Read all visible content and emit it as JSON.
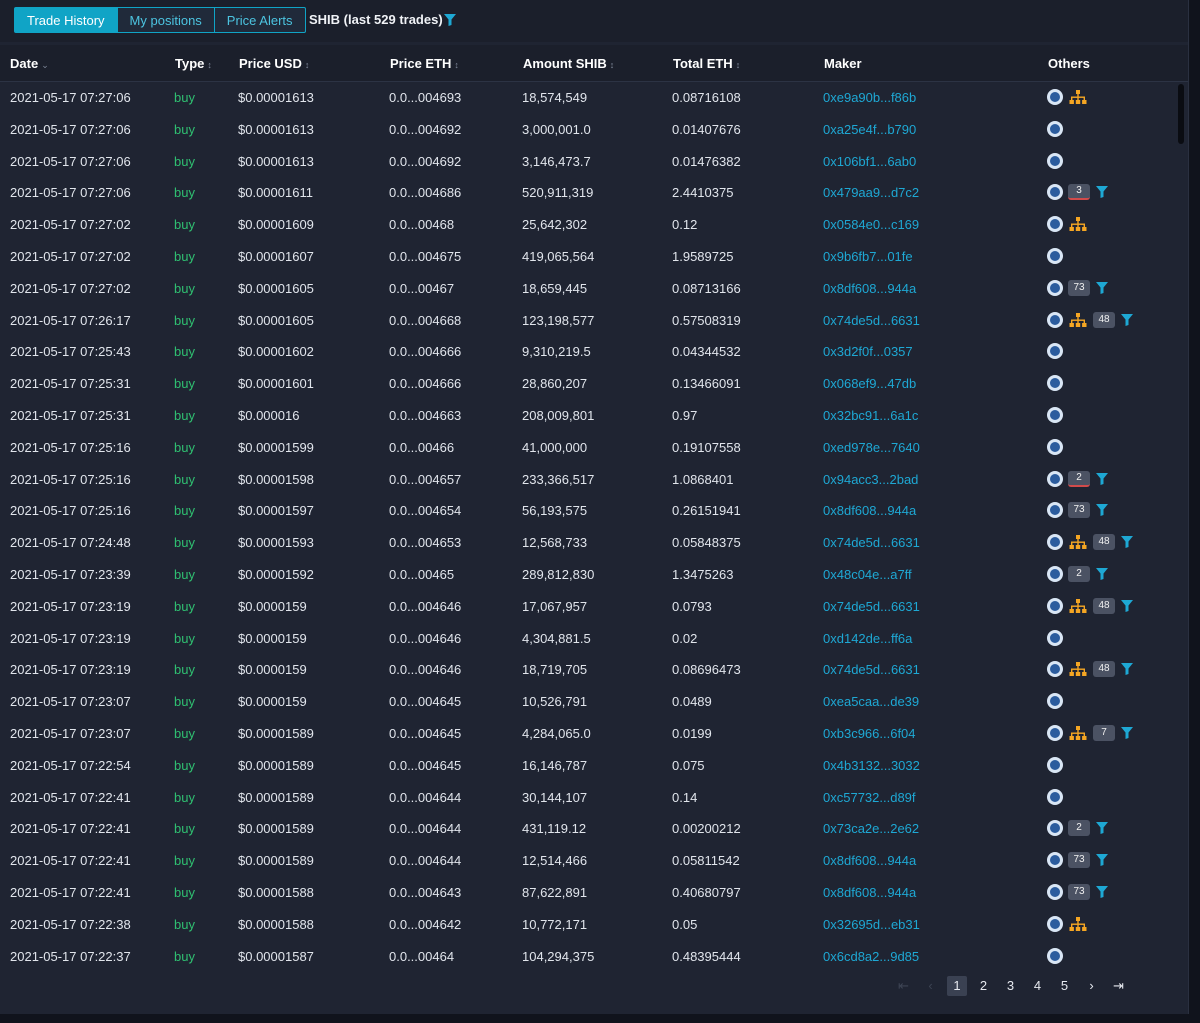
{
  "tabs": [
    {
      "label": "Trade History",
      "active": true
    },
    {
      "label": "My positions",
      "active": false
    },
    {
      "label": "Price Alerts",
      "active": false
    }
  ],
  "pair_label": "SHIB (last 529 trades)",
  "columns": [
    "Date",
    "Type",
    "Price USD",
    "Price ETH",
    "Amount SHIB",
    "Total ETH",
    "Maker",
    "Others"
  ],
  "sort_glyphs": {
    "date": "⌄",
    "type": "↕",
    "usd": "↕",
    "eth": "↕",
    "amt": "↕",
    "tot": "↕"
  },
  "colors": {
    "buy": "#2fbf71",
    "link": "#1ea8d4",
    "accent": "#10a4c6",
    "tree": "#f5a623"
  },
  "rows": [
    {
      "date": "2021-05-17 07:27:06",
      "type": "buy",
      "usd": "$0.00001613",
      "eth": "0.0...004693",
      "amt": "18,574,549",
      "tot": "0.08716108",
      "maker": "0xe9a90b...f86b",
      "tree": true,
      "badge": "",
      "filter": false
    },
    {
      "date": "2021-05-17 07:27:06",
      "type": "buy",
      "usd": "$0.00001613",
      "eth": "0.0...004692",
      "amt": "3,000,001.0",
      "tot": "0.01407676",
      "maker": "0xa25e4f...b790",
      "tree": false,
      "badge": "",
      "filter": false
    },
    {
      "date": "2021-05-17 07:27:06",
      "type": "buy",
      "usd": "$0.00001613",
      "eth": "0.0...004692",
      "amt": "3,146,473.7",
      "tot": "0.01476382",
      "maker": "0x106bf1...6ab0",
      "tree": false,
      "badge": "",
      "filter": false
    },
    {
      "date": "2021-05-17 07:27:06",
      "type": "buy",
      "usd": "$0.00001611",
      "eth": "0.0...004686",
      "amt": "520,911,319",
      "tot": "2.4410375",
      "maker": "0x479aa9...d7c2",
      "tree": false,
      "badge": "3",
      "badge_red": true,
      "filter": true
    },
    {
      "date": "2021-05-17 07:27:02",
      "type": "buy",
      "usd": "$0.00001609",
      "eth": "0.0...00468",
      "amt": "25,642,302",
      "tot": "0.12",
      "maker": "0x0584e0...c169",
      "tree": true,
      "badge": "",
      "filter": false
    },
    {
      "date": "2021-05-17 07:27:02",
      "type": "buy",
      "usd": "$0.00001607",
      "eth": "0.0...004675",
      "amt": "419,065,564",
      "tot": "1.9589725",
      "maker": "0x9b6fb7...01fe",
      "tree": false,
      "badge": "",
      "filter": false
    },
    {
      "date": "2021-05-17 07:27:02",
      "type": "buy",
      "usd": "$0.00001605",
      "eth": "0.0...00467",
      "amt": "18,659,445",
      "tot": "0.08713166",
      "maker": "0x8df608...944a",
      "tree": false,
      "badge": "73",
      "filter": true
    },
    {
      "date": "2021-05-17 07:26:17",
      "type": "buy",
      "usd": "$0.00001605",
      "eth": "0.0...004668",
      "amt": "123,198,577",
      "tot": "0.57508319",
      "maker": "0x74de5d...6631",
      "tree": true,
      "badge": "48",
      "filter": true
    },
    {
      "date": "2021-05-17 07:25:43",
      "type": "buy",
      "usd": "$0.00001602",
      "eth": "0.0...004666",
      "amt": "9,310,219.5",
      "tot": "0.04344532",
      "maker": "0x3d2f0f...0357",
      "tree": false,
      "badge": "",
      "filter": false
    },
    {
      "date": "2021-05-17 07:25:31",
      "type": "buy",
      "usd": "$0.00001601",
      "eth": "0.0...004666",
      "amt": "28,860,207",
      "tot": "0.13466091",
      "maker": "0x068ef9...47db",
      "tree": false,
      "badge": "",
      "filter": false
    },
    {
      "date": "2021-05-17 07:25:31",
      "type": "buy",
      "usd": "$0.000016",
      "eth": "0.0...004663",
      "amt": "208,009,801",
      "tot": "0.97",
      "maker": "0x32bc91...6a1c",
      "tree": false,
      "badge": "",
      "filter": false
    },
    {
      "date": "2021-05-17 07:25:16",
      "type": "buy",
      "usd": "$0.00001599",
      "eth": "0.0...00466",
      "amt": "41,000,000",
      "tot": "0.19107558",
      "maker": "0xed978e...7640",
      "tree": false,
      "badge": "",
      "filter": false
    },
    {
      "date": "2021-05-17 07:25:16",
      "type": "buy",
      "usd": "$0.00001598",
      "eth": "0.0...004657",
      "amt": "233,366,517",
      "tot": "1.0868401",
      "maker": "0x94acc3...2bad",
      "tree": false,
      "badge": "2",
      "badge_red": true,
      "filter": true
    },
    {
      "date": "2021-05-17 07:25:16",
      "type": "buy",
      "usd": "$0.00001597",
      "eth": "0.0...004654",
      "amt": "56,193,575",
      "tot": "0.26151941",
      "maker": "0x8df608...944a",
      "tree": false,
      "badge": "73",
      "filter": true
    },
    {
      "date": "2021-05-17 07:24:48",
      "type": "buy",
      "usd": "$0.00001593",
      "eth": "0.0...004653",
      "amt": "12,568,733",
      "tot": "0.05848375",
      "maker": "0x74de5d...6631",
      "tree": true,
      "badge": "48",
      "filter": true
    },
    {
      "date": "2021-05-17 07:23:39",
      "type": "buy",
      "usd": "$0.00001592",
      "eth": "0.0...00465",
      "amt": "289,812,830",
      "tot": "1.3475263",
      "maker": "0x48c04e...a7ff",
      "tree": false,
      "badge": "2",
      "filter": true
    },
    {
      "date": "2021-05-17 07:23:19",
      "type": "buy",
      "usd": "$0.0000159",
      "eth": "0.0...004646",
      "amt": "17,067,957",
      "tot": "0.0793",
      "maker": "0x74de5d...6631",
      "tree": true,
      "badge": "48",
      "filter": true
    },
    {
      "date": "2021-05-17 07:23:19",
      "type": "buy",
      "usd": "$0.0000159",
      "eth": "0.0...004646",
      "amt": "4,304,881.5",
      "tot": "0.02",
      "maker": "0xd142de...ff6a",
      "tree": false,
      "badge": "",
      "filter": false
    },
    {
      "date": "2021-05-17 07:23:19",
      "type": "buy",
      "usd": "$0.0000159",
      "eth": "0.0...004646",
      "amt": "18,719,705",
      "tot": "0.08696473",
      "maker": "0x74de5d...6631",
      "tree": true,
      "badge": "48",
      "filter": true
    },
    {
      "date": "2021-05-17 07:23:07",
      "type": "buy",
      "usd": "$0.0000159",
      "eth": "0.0...004645",
      "amt": "10,526,791",
      "tot": "0.0489",
      "maker": "0xea5caa...de39",
      "tree": false,
      "badge": "",
      "filter": false
    },
    {
      "date": "2021-05-17 07:23:07",
      "type": "buy",
      "usd": "$0.00001589",
      "eth": "0.0...004645",
      "amt": "4,284,065.0",
      "tot": "0.0199",
      "maker": "0xb3c966...6f04",
      "tree": true,
      "badge": "7",
      "filter": true
    },
    {
      "date": "2021-05-17 07:22:54",
      "type": "buy",
      "usd": "$0.00001589",
      "eth": "0.0...004645",
      "amt": "16,146,787",
      "tot": "0.075",
      "maker": "0x4b3132...3032",
      "tree": false,
      "badge": "",
      "filter": false
    },
    {
      "date": "2021-05-17 07:22:41",
      "type": "buy",
      "usd": "$0.00001589",
      "eth": "0.0...004644",
      "amt": "30,144,107",
      "tot": "0.14",
      "maker": "0xc57732...d89f",
      "tree": false,
      "badge": "",
      "filter": false
    },
    {
      "date": "2021-05-17 07:22:41",
      "type": "buy",
      "usd": "$0.00001589",
      "eth": "0.0...004644",
      "amt": "431,119.12",
      "tot": "0.00200212",
      "maker": "0x73ca2e...2e62",
      "tree": false,
      "badge": "2",
      "filter": true
    },
    {
      "date": "2021-05-17 07:22:41",
      "type": "buy",
      "usd": "$0.00001589",
      "eth": "0.0...004644",
      "amt": "12,514,466",
      "tot": "0.05811542",
      "maker": "0x8df608...944a",
      "tree": false,
      "badge": "73",
      "filter": true
    },
    {
      "date": "2021-05-17 07:22:41",
      "type": "buy",
      "usd": "$0.00001588",
      "eth": "0.0...004643",
      "amt": "87,622,891",
      "tot": "0.40680797",
      "maker": "0x8df608...944a",
      "tree": false,
      "badge": "73",
      "filter": true
    },
    {
      "date": "2021-05-17 07:22:38",
      "type": "buy",
      "usd": "$0.00001588",
      "eth": "0.0...004642",
      "amt": "10,772,171",
      "tot": "0.05",
      "maker": "0x32695d...eb31",
      "tree": true,
      "badge": "",
      "filter": false
    },
    {
      "date": "2021-05-17 07:22:37",
      "type": "buy",
      "usd": "$0.00001587",
      "eth": "0.0...00464",
      "amt": "104,294,375",
      "tot": "0.48395444",
      "maker": "0x6cd8a2...9d85",
      "tree": false,
      "badge": "",
      "filter": false
    }
  ],
  "pagination": {
    "first": "⇤",
    "prev": "‹",
    "pages": [
      "1",
      "2",
      "3",
      "4",
      "5"
    ],
    "current": "1",
    "next": "›",
    "last": "⇥"
  }
}
